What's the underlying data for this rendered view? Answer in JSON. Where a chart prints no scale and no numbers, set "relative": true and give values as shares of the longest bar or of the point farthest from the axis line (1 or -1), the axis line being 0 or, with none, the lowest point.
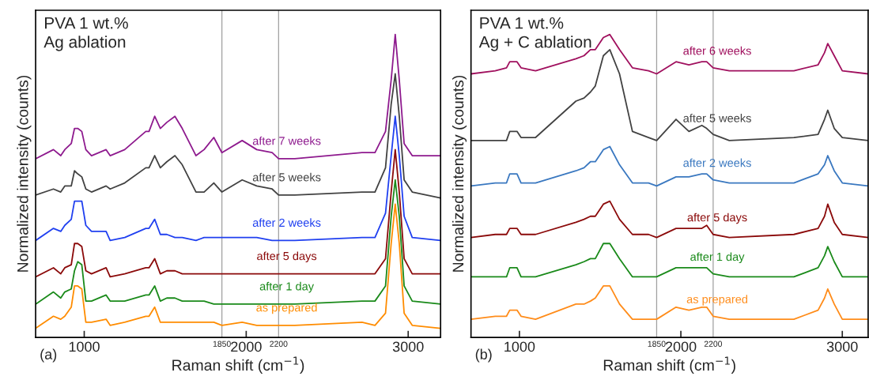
{
  "chart_data": [
    {
      "type": "line",
      "title": "PVA 1 wt.%\nAg ablation",
      "xlabel": "Raman shift (cm$^{−1}$)",
      "ylabel": "Normalized intensity (counts)",
      "relative": true,
      "x": [
        700,
        810,
        855,
        880,
        920,
        940,
        960,
        985,
        1010,
        1045,
        1135,
        1160,
        1250,
        1380,
        1400,
        1435,
        1470,
        1510,
        1560,
        1605,
        1690,
        1740,
        1800,
        1850,
        1975,
        2065,
        2160,
        2200,
        2300,
        2715,
        2795,
        2860,
        2895,
        2920,
        2945,
        2975,
        3025,
        3200
      ],
      "xlim": [
        700,
        3200
      ],
      "xticks": [
        1000,
        2000,
        3000
      ],
      "ref_lines": [
        {
          "axis": "x",
          "value": 1850,
          "label": "1850",
          "color": "#a0a0a0"
        },
        {
          "axis": "x",
          "value": 2200,
          "label": "2200",
          "color": "#a0a0a0"
        }
      ],
      "annotations": [
        "(a)"
      ],
      "series": [
        {
          "name": "after 7 weeks",
          "color": "#8e1a8e",
          "values": [
            0.59,
            0.62,
            0.6,
            0.62,
            0.64,
            0.69,
            0.69,
            0.68,
            0.62,
            0.6,
            0.62,
            0.6,
            0.62,
            0.68,
            0.68,
            0.73,
            0.69,
            0.71,
            0.73,
            0.69,
            0.6,
            0.62,
            0.66,
            0.61,
            0.65,
            0.62,
            0.61,
            0.59,
            0.59,
            0.61,
            0.61,
            0.68,
            0.85,
            1.0,
            0.85,
            0.64,
            0.6,
            0.6
          ]
        },
        {
          "name": "after 5 weeks",
          "color": "#424242",
          "values": [
            0.47,
            0.49,
            0.48,
            0.5,
            0.5,
            0.55,
            0.54,
            0.53,
            0.49,
            0.48,
            0.5,
            0.49,
            0.51,
            0.56,
            0.56,
            0.6,
            0.56,
            0.58,
            0.6,
            0.57,
            0.48,
            0.48,
            0.51,
            0.48,
            0.52,
            0.5,
            0.49,
            0.47,
            0.47,
            0.48,
            0.48,
            0.56,
            0.77,
            0.87,
            0.73,
            0.52,
            0.48,
            0.46
          ]
        },
        {
          "name": "after 2 weeks",
          "color": "#2040f0",
          "values": [
            0.32,
            0.36,
            0.35,
            0.37,
            0.39,
            0.45,
            0.45,
            0.45,
            0.37,
            0.35,
            0.35,
            0.32,
            0.33,
            0.36,
            0.36,
            0.39,
            0.34,
            0.34,
            0.33,
            0.33,
            0.32,
            0.33,
            0.33,
            0.33,
            0.33,
            0.33,
            0.32,
            0.32,
            0.32,
            0.33,
            0.33,
            0.41,
            0.6,
            0.73,
            0.6,
            0.4,
            0.33,
            0.32
          ]
        },
        {
          "name": "after 5 days",
          "color": "#8b0a0a",
          "values": [
            0.2,
            0.23,
            0.21,
            0.23,
            0.24,
            0.31,
            0.31,
            0.3,
            0.22,
            0.21,
            0.23,
            0.2,
            0.21,
            0.23,
            0.23,
            0.26,
            0.21,
            0.22,
            0.22,
            0.21,
            0.21,
            0.21,
            0.21,
            0.21,
            0.21,
            0.21,
            0.21,
            0.21,
            0.21,
            0.21,
            0.21,
            0.26,
            0.48,
            0.62,
            0.48,
            0.26,
            0.21,
            0.21
          ]
        },
        {
          "name": "after 1 day",
          "color": "#1a8a1a",
          "values": [
            0.11,
            0.15,
            0.13,
            0.15,
            0.16,
            0.22,
            0.25,
            0.24,
            0.12,
            0.12,
            0.14,
            0.12,
            0.12,
            0.14,
            0.14,
            0.17,
            0.12,
            0.13,
            0.13,
            0.12,
            0.12,
            0.12,
            0.11,
            0.11,
            0.11,
            0.11,
            0.11,
            0.11,
            0.11,
            0.12,
            0.12,
            0.17,
            0.4,
            0.52,
            0.4,
            0.17,
            0.12,
            0.11
          ]
        },
        {
          "name": "as prepared",
          "color": "#ff8c00",
          "values": [
            0.03,
            0.07,
            0.06,
            0.07,
            0.1,
            0.17,
            0.17,
            0.16,
            0.05,
            0.05,
            0.06,
            0.04,
            0.05,
            0.07,
            0.07,
            0.1,
            0.05,
            0.05,
            0.05,
            0.05,
            0.05,
            0.05,
            0.05,
            0.04,
            0.05,
            0.04,
            0.04,
            0.04,
            0.04,
            0.05,
            0.04,
            0.08,
            0.31,
            0.44,
            0.31,
            0.08,
            0.04,
            0.03
          ]
        }
      ]
    },
    {
      "type": "line",
      "title": "PVA 1 wt.%\nAg + C ablation",
      "xlabel": "Raman shift (cm$^{−1}$)",
      "ylabel": "Normalized intensity (counts)",
      "relative": true,
      "x": [
        700,
        850,
        920,
        940,
        985,
        1010,
        1100,
        1350,
        1400,
        1440,
        1470,
        1520,
        1560,
        1620,
        1700,
        1800,
        1850,
        1970,
        2050,
        2130,
        2160,
        2200,
        2300,
        2700,
        2850,
        2890,
        2910,
        2950,
        3000,
        3160
      ],
      "xlim": [
        700,
        3160
      ],
      "xticks": [
        1000,
        2000,
        3000
      ],
      "ref_lines": [
        {
          "axis": "x",
          "value": 1850,
          "label": "1850",
          "color": "#a0a0a0"
        },
        {
          "axis": "x",
          "value": 2200,
          "label": "2200",
          "color": "#a0a0a0"
        }
      ],
      "annotations": [
        "(b)"
      ],
      "series": [
        {
          "name": "after 6 weeks",
          "color": "#a0105e",
          "values": [
            0.87,
            0.88,
            0.89,
            0.91,
            0.91,
            0.89,
            0.88,
            0.92,
            0.93,
            0.95,
            0.95,
            0.99,
            1.0,
            0.95,
            0.89,
            0.88,
            0.87,
            0.91,
            0.9,
            0.91,
            0.91,
            0.89,
            0.88,
            0.88,
            0.9,
            0.94,
            0.97,
            0.93,
            0.88,
            0.87
          ]
        },
        {
          "name": "after 5 weeks",
          "color": "#424242",
          "values": [
            0.65,
            0.65,
            0.65,
            0.68,
            0.68,
            0.66,
            0.66,
            0.78,
            0.79,
            0.81,
            0.83,
            0.93,
            0.95,
            0.87,
            0.68,
            0.66,
            0.65,
            0.72,
            0.68,
            0.7,
            0.69,
            0.67,
            0.65,
            0.66,
            0.67,
            0.72,
            0.75,
            0.69,
            0.66,
            0.65
          ]
        },
        {
          "name": "after 2 weeks",
          "color": "#3a78c0",
          "values": [
            0.5,
            0.51,
            0.51,
            0.54,
            0.54,
            0.51,
            0.51,
            0.55,
            0.56,
            0.58,
            0.58,
            0.62,
            0.63,
            0.57,
            0.51,
            0.51,
            0.5,
            0.53,
            0.53,
            0.54,
            0.54,
            0.52,
            0.51,
            0.51,
            0.54,
            0.57,
            0.6,
            0.55,
            0.51,
            0.5
          ]
        },
        {
          "name": "after 5 days",
          "color": "#8b0a0a",
          "values": [
            0.33,
            0.34,
            0.34,
            0.36,
            0.36,
            0.34,
            0.34,
            0.38,
            0.39,
            0.4,
            0.4,
            0.44,
            0.45,
            0.39,
            0.34,
            0.34,
            0.33,
            0.36,
            0.36,
            0.36,
            0.37,
            0.34,
            0.33,
            0.34,
            0.36,
            0.4,
            0.44,
            0.38,
            0.34,
            0.33
          ]
        },
        {
          "name": "after 1 day",
          "color": "#1a8a1a",
          "values": [
            0.2,
            0.2,
            0.2,
            0.23,
            0.23,
            0.2,
            0.2,
            0.24,
            0.25,
            0.26,
            0.26,
            0.31,
            0.31,
            0.26,
            0.2,
            0.2,
            0.2,
            0.23,
            0.23,
            0.23,
            0.23,
            0.21,
            0.2,
            0.2,
            0.23,
            0.27,
            0.3,
            0.25,
            0.2,
            0.2
          ]
        },
        {
          "name": "as prepared",
          "color": "#ff8c1a",
          "values": [
            0.06,
            0.07,
            0.07,
            0.09,
            0.09,
            0.07,
            0.06,
            0.11,
            0.11,
            0.12,
            0.13,
            0.17,
            0.17,
            0.11,
            0.06,
            0.06,
            0.06,
            0.1,
            0.09,
            0.1,
            0.1,
            0.07,
            0.06,
            0.06,
            0.09,
            0.13,
            0.16,
            0.11,
            0.06,
            0.06
          ]
        }
      ]
    }
  ]
}
